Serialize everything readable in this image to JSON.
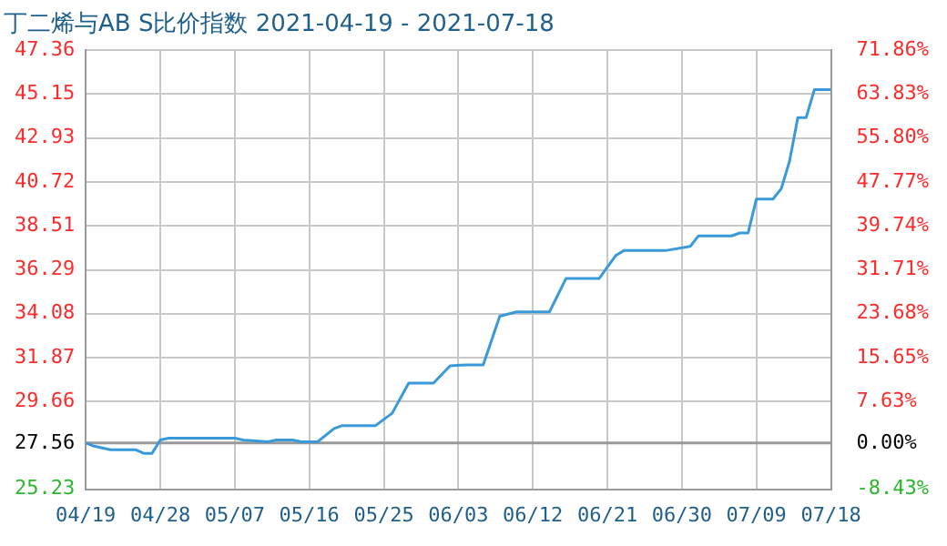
{
  "chart_data": {
    "type": "line",
    "title": "丁二烯与AB S比价指数 2021-04-19 - 2021-07-18",
    "x": [
      "2021-04-19",
      "2021-04-20",
      "2021-04-22",
      "2021-04-25",
      "2021-04-26",
      "2021-04-27",
      "2021-04-28",
      "2021-04-29",
      "2021-05-07",
      "2021-05-08",
      "2021-05-11",
      "2021-05-12",
      "2021-05-14",
      "2021-05-15",
      "2021-05-17",
      "2021-05-19",
      "2021-05-20",
      "2021-05-24",
      "2021-05-25",
      "2021-05-26",
      "2021-05-28",
      "2021-05-31",
      "2021-06-02",
      "2021-06-04",
      "2021-06-06",
      "2021-06-08",
      "2021-06-10",
      "2021-06-14",
      "2021-06-16",
      "2021-06-20",
      "2021-06-22",
      "2021-06-23",
      "2021-06-28",
      "2021-07-01",
      "2021-07-02",
      "2021-07-06",
      "2021-07-07",
      "2021-07-08",
      "2021-07-09",
      "2021-07-11",
      "2021-07-12",
      "2021-07-13",
      "2021-07-14",
      "2021-07-15",
      "2021-07-16",
      "2021-07-18"
    ],
    "series": [
      {
        "color": "#3a9ad9",
        "values": [
          27.56,
          27.4,
          27.22,
          27.22,
          27.04,
          27.04,
          27.71,
          27.8,
          27.8,
          27.71,
          27.62,
          27.71,
          27.71,
          27.62,
          27.62,
          28.29,
          28.44,
          28.44,
          28.75,
          29.06,
          30.58,
          30.58,
          31.45,
          31.5,
          31.5,
          33.95,
          34.17,
          34.17,
          35.85,
          35.85,
          37.01,
          37.26,
          37.26,
          37.47,
          38.0,
          38.0,
          38.15,
          38.15,
          39.86,
          39.86,
          40.38,
          41.76,
          43.96,
          43.96,
          45.37,
          45.37
        ]
      }
    ],
    "xlim": [
      "2021-04-19",
      "2021-07-18"
    ],
    "xticks": [
      {
        "value": "2021-04-19",
        "label": "04/19"
      },
      {
        "value": "2021-04-28",
        "label": "04/28"
      },
      {
        "value": "2021-05-07",
        "label": "05/07"
      },
      {
        "value": "2021-05-16",
        "label": "05/16"
      },
      {
        "value": "2021-05-25",
        "label": "05/25"
      },
      {
        "value": "2021-06-03",
        "label": "06/03"
      },
      {
        "value": "2021-06-12",
        "label": "06/12"
      },
      {
        "value": "2021-06-21",
        "label": "06/21"
      },
      {
        "value": "2021-06-30",
        "label": "06/30"
      },
      {
        "value": "2021-07-09",
        "label": "07/09"
      },
      {
        "value": "2021-07-18",
        "label": "07/18"
      }
    ],
    "ylim": [
      25.23,
      47.36
    ],
    "yticks": [
      25.23,
      27.56,
      29.66,
      31.87,
      34.08,
      36.29,
      38.51,
      40.72,
      42.93,
      45.15,
      47.36
    ],
    "y2lim": [
      -8.43,
      71.86
    ],
    "y2ticks": [
      {
        "value": -8.43,
        "label": "-8.43%"
      },
      {
        "value": 0,
        "label": "0.00%"
      },
      {
        "value": 7.63,
        "label": "7.63%"
      },
      {
        "value": 15.65,
        "label": "15.65%"
      },
      {
        "value": 23.68,
        "label": "23.68%"
      },
      {
        "value": 31.71,
        "label": "31.71%"
      },
      {
        "value": 39.74,
        "label": "39.74%"
      },
      {
        "value": 47.77,
        "label": "47.77%"
      },
      {
        "value": 55.8,
        "label": "55.80%"
      },
      {
        "value": 63.83,
        "label": "63.83%"
      },
      {
        "value": 71.86,
        "label": "71.86%"
      }
    ],
    "ref_lines": [
      {
        "axis": "y",
        "value": 27.56,
        "color": "#999999"
      }
    ],
    "grid": true,
    "legend": false,
    "marker": "none",
    "line_style": "solid"
  }
}
